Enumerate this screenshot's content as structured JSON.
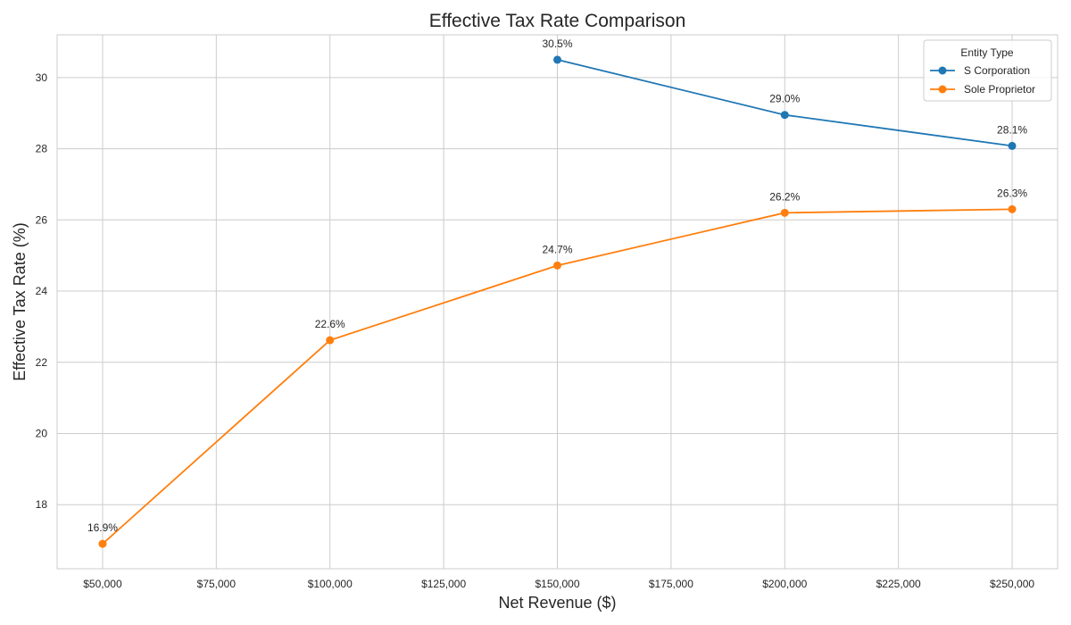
{
  "chart_data": {
    "type": "line",
    "title": "Effective Tax Rate Comparison",
    "xlabel": "Net Revenue ($)",
    "ylabel": "Effective Tax Rate (%)",
    "xlim": [
      40000,
      260000
    ],
    "ylim": [
      16.2,
      31.2
    ],
    "x_ticks": [
      50000,
      75000,
      100000,
      125000,
      150000,
      175000,
      200000,
      225000,
      250000
    ],
    "x_tick_labels": [
      "$50,000",
      "$75,000",
      "$100,000",
      "$125,000",
      "$150,000",
      "$175,000",
      "$200,000",
      "$225,000",
      "$250,000"
    ],
    "y_ticks": [
      18,
      20,
      22,
      24,
      26,
      28,
      30
    ],
    "y_tick_labels": [
      "18",
      "20",
      "22",
      "24",
      "26",
      "28",
      "30"
    ],
    "grid": true,
    "legend": {
      "title": "Entity Type",
      "placement": "top-right"
    },
    "series": [
      {
        "name": "S Corporation",
        "color": "#1f77b4",
        "x": [
          150000,
          200000,
          250000
        ],
        "y": [
          30.5,
          28.95,
          28.08
        ],
        "labels": [
          "30.5%",
          "29.0%",
          "28.1%"
        ]
      },
      {
        "name": "Sole Proprietor",
        "color": "#ff7f0e",
        "x": [
          50000,
          100000,
          150000,
          200000,
          250000
        ],
        "y": [
          16.9,
          22.62,
          24.72,
          26.2,
          26.3
        ],
        "labels": [
          "16.9%",
          "22.6%",
          "24.7%",
          "26.2%",
          "26.3%"
        ]
      }
    ]
  }
}
